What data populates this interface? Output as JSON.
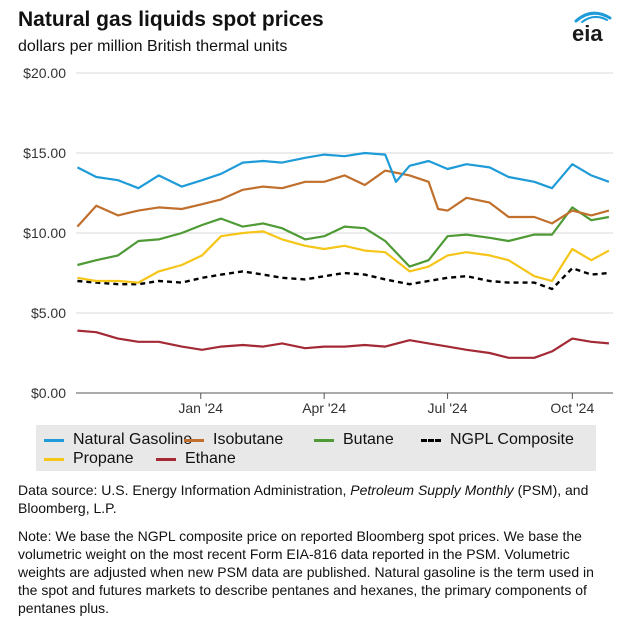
{
  "header": {
    "title": "Natural gas liquids spot prices",
    "subtitle": "dollars per million British thermal units",
    "logo_text": "eia"
  },
  "colors": {
    "natural_gasoline": "#1f9bd8",
    "isobutane": "#c06f2c",
    "butane": "#4e9a35",
    "ngpl_composite": "#000000",
    "propane": "#f5c518",
    "ethane": "#a32a35",
    "grid": "#d9d9d9",
    "legend_bg": "#e8e8e8"
  },
  "chart_data": {
    "type": "line",
    "x_range": [
      "2023-10-01",
      "2024-10-31"
    ],
    "ylim": [
      0,
      20
    ],
    "y_ticks": [
      {
        "value": 0,
        "label": "$0.00"
      },
      {
        "value": 5,
        "label": "$5.00"
      },
      {
        "value": 10,
        "label": "$10.00"
      },
      {
        "value": 15,
        "label": "$15.00"
      },
      {
        "value": 20,
        "label": "$20.00"
      }
    ],
    "x_ticks": [
      {
        "date": "2024-01-01",
        "label": "Jan '24"
      },
      {
        "date": "2024-04-01",
        "label": "Apr '24"
      },
      {
        "date": "2024-07-01",
        "label": "Jul '24"
      },
      {
        "date": "2024-10-01",
        "label": "Oct '24"
      }
    ],
    "grid": "horizontal",
    "legend_position": "bottom",
    "series": [
      {
        "name": "Natural Gasoline",
        "key": "natural_gasoline",
        "points": [
          [
            "2023-10-02",
            14.1
          ],
          [
            "2023-10-16",
            13.5
          ],
          [
            "2023-11-01",
            13.3
          ],
          [
            "2023-11-16",
            12.8
          ],
          [
            "2023-12-01",
            13.6
          ],
          [
            "2023-12-18",
            12.9
          ],
          [
            "2024-01-02",
            13.3
          ],
          [
            "2024-01-16",
            13.7
          ],
          [
            "2024-02-01",
            14.4
          ],
          [
            "2024-02-16",
            14.5
          ],
          [
            "2024-03-01",
            14.4
          ],
          [
            "2024-03-18",
            14.7
          ],
          [
            "2024-04-01",
            14.9
          ],
          [
            "2024-04-16",
            14.8
          ],
          [
            "2024-05-01",
            15.0
          ],
          [
            "2024-05-16",
            14.9
          ],
          [
            "2024-05-24",
            13.2
          ],
          [
            "2024-06-03",
            14.2
          ],
          [
            "2024-06-17",
            14.5
          ],
          [
            "2024-07-01",
            14.0
          ],
          [
            "2024-07-15",
            14.3
          ],
          [
            "2024-08-01",
            14.1
          ],
          [
            "2024-08-15",
            13.5
          ],
          [
            "2024-09-03",
            13.2
          ],
          [
            "2024-09-16",
            12.8
          ],
          [
            "2024-10-01",
            14.3
          ],
          [
            "2024-10-15",
            13.6
          ],
          [
            "2024-10-28",
            13.2
          ]
        ]
      },
      {
        "name": "Isobutane",
        "key": "isobutane",
        "points": [
          [
            "2023-10-02",
            10.4
          ],
          [
            "2023-10-16",
            11.7
          ],
          [
            "2023-11-01",
            11.1
          ],
          [
            "2023-11-16",
            11.4
          ],
          [
            "2023-12-01",
            11.6
          ],
          [
            "2023-12-18",
            11.5
          ],
          [
            "2024-01-02",
            11.8
          ],
          [
            "2024-01-16",
            12.1
          ],
          [
            "2024-02-01",
            12.7
          ],
          [
            "2024-02-16",
            12.9
          ],
          [
            "2024-03-01",
            12.8
          ],
          [
            "2024-03-18",
            13.2
          ],
          [
            "2024-04-01",
            13.2
          ],
          [
            "2024-04-16",
            13.6
          ],
          [
            "2024-05-01",
            13.0
          ],
          [
            "2024-05-16",
            13.9
          ],
          [
            "2024-06-03",
            13.6
          ],
          [
            "2024-06-17",
            13.2
          ],
          [
            "2024-06-24",
            11.5
          ],
          [
            "2024-07-01",
            11.4
          ],
          [
            "2024-07-15",
            12.2
          ],
          [
            "2024-08-01",
            11.9
          ],
          [
            "2024-08-15",
            11.0
          ],
          [
            "2024-09-03",
            11.0
          ],
          [
            "2024-09-16",
            10.6
          ],
          [
            "2024-10-01",
            11.4
          ],
          [
            "2024-10-15",
            11.1
          ],
          [
            "2024-10-28",
            11.4
          ]
        ]
      },
      {
        "name": "Butane",
        "key": "butane",
        "points": [
          [
            "2023-10-02",
            8.0
          ],
          [
            "2023-10-16",
            8.3
          ],
          [
            "2023-11-01",
            8.6
          ],
          [
            "2023-11-16",
            9.5
          ],
          [
            "2023-12-01",
            9.6
          ],
          [
            "2023-12-18",
            10.0
          ],
          [
            "2024-01-02",
            10.5
          ],
          [
            "2024-01-16",
            10.9
          ],
          [
            "2024-02-01",
            10.4
          ],
          [
            "2024-02-16",
            10.6
          ],
          [
            "2024-03-01",
            10.3
          ],
          [
            "2024-03-18",
            9.6
          ],
          [
            "2024-04-01",
            9.8
          ],
          [
            "2024-04-16",
            10.4
          ],
          [
            "2024-05-01",
            10.3
          ],
          [
            "2024-05-16",
            9.5
          ],
          [
            "2024-06-03",
            7.9
          ],
          [
            "2024-06-17",
            8.3
          ],
          [
            "2024-07-01",
            9.8
          ],
          [
            "2024-07-15",
            9.9
          ],
          [
            "2024-08-01",
            9.7
          ],
          [
            "2024-08-15",
            9.5
          ],
          [
            "2024-09-03",
            9.9
          ],
          [
            "2024-09-16",
            9.9
          ],
          [
            "2024-10-01",
            11.6
          ],
          [
            "2024-10-15",
            10.8
          ],
          [
            "2024-10-28",
            11.0
          ]
        ]
      },
      {
        "name": "NGPL Composite",
        "key": "ngpl_composite",
        "points": [
          [
            "2023-10-02",
            7.0
          ],
          [
            "2023-10-16",
            6.9
          ],
          [
            "2023-11-01",
            6.8
          ],
          [
            "2023-11-16",
            6.8
          ],
          [
            "2023-12-01",
            7.0
          ],
          [
            "2023-12-18",
            6.9
          ],
          [
            "2024-01-02",
            7.2
          ],
          [
            "2024-01-16",
            7.4
          ],
          [
            "2024-02-01",
            7.6
          ],
          [
            "2024-02-16",
            7.4
          ],
          [
            "2024-03-01",
            7.2
          ],
          [
            "2024-03-18",
            7.1
          ],
          [
            "2024-04-01",
            7.3
          ],
          [
            "2024-04-16",
            7.5
          ],
          [
            "2024-05-01",
            7.4
          ],
          [
            "2024-05-16",
            7.1
          ],
          [
            "2024-06-03",
            6.8
          ],
          [
            "2024-06-17",
            7.0
          ],
          [
            "2024-07-01",
            7.2
          ],
          [
            "2024-07-15",
            7.3
          ],
          [
            "2024-08-01",
            7.0
          ],
          [
            "2024-08-15",
            6.9
          ],
          [
            "2024-09-03",
            6.9
          ],
          [
            "2024-09-16",
            6.5
          ],
          [
            "2024-10-01",
            7.8
          ],
          [
            "2024-10-15",
            7.4
          ],
          [
            "2024-10-28",
            7.5
          ]
        ]
      },
      {
        "name": "Propane",
        "key": "propane",
        "points": [
          [
            "2023-10-02",
            7.2
          ],
          [
            "2023-10-16",
            7.0
          ],
          [
            "2023-11-01",
            7.0
          ],
          [
            "2023-11-16",
            6.9
          ],
          [
            "2023-12-01",
            7.6
          ],
          [
            "2023-12-18",
            8.0
          ],
          [
            "2024-01-02",
            8.6
          ],
          [
            "2024-01-16",
            9.8
          ],
          [
            "2024-02-01",
            10.0
          ],
          [
            "2024-02-16",
            10.1
          ],
          [
            "2024-03-01",
            9.6
          ],
          [
            "2024-03-18",
            9.2
          ],
          [
            "2024-04-01",
            9.0
          ],
          [
            "2024-04-16",
            9.2
          ],
          [
            "2024-05-01",
            8.9
          ],
          [
            "2024-05-16",
            8.8
          ],
          [
            "2024-06-03",
            7.6
          ],
          [
            "2024-06-17",
            7.9
          ],
          [
            "2024-07-01",
            8.6
          ],
          [
            "2024-07-15",
            8.8
          ],
          [
            "2024-08-01",
            8.6
          ],
          [
            "2024-08-15",
            8.3
          ],
          [
            "2024-09-03",
            7.3
          ],
          [
            "2024-09-16",
            7.0
          ],
          [
            "2024-10-01",
            9.0
          ],
          [
            "2024-10-15",
            8.3
          ],
          [
            "2024-10-28",
            8.9
          ]
        ]
      },
      {
        "name": "Ethane",
        "key": "ethane",
        "points": [
          [
            "2023-10-02",
            3.9
          ],
          [
            "2023-10-16",
            3.8
          ],
          [
            "2023-11-01",
            3.4
          ],
          [
            "2023-11-16",
            3.2
          ],
          [
            "2023-12-01",
            3.2
          ],
          [
            "2023-12-18",
            2.9
          ],
          [
            "2024-01-02",
            2.7
          ],
          [
            "2024-01-16",
            2.9
          ],
          [
            "2024-02-01",
            3.0
          ],
          [
            "2024-02-16",
            2.9
          ],
          [
            "2024-03-01",
            3.1
          ],
          [
            "2024-03-18",
            2.8
          ],
          [
            "2024-04-01",
            2.9
          ],
          [
            "2024-04-16",
            2.9
          ],
          [
            "2024-05-01",
            3.0
          ],
          [
            "2024-05-16",
            2.9
          ],
          [
            "2024-06-03",
            3.3
          ],
          [
            "2024-06-17",
            3.1
          ],
          [
            "2024-07-01",
            2.9
          ],
          [
            "2024-07-15",
            2.7
          ],
          [
            "2024-08-01",
            2.5
          ],
          [
            "2024-08-15",
            2.2
          ],
          [
            "2024-09-03",
            2.2
          ],
          [
            "2024-09-16",
            2.6
          ],
          [
            "2024-10-01",
            3.4
          ],
          [
            "2024-10-15",
            3.2
          ],
          [
            "2024-10-28",
            3.1
          ]
        ]
      }
    ]
  },
  "legend": {
    "items": [
      {
        "label": "Natural Gasoline",
        "key": "natural_gasoline",
        "style": "solid"
      },
      {
        "label": "Isobutane",
        "key": "isobutane",
        "style": "solid"
      },
      {
        "label": "Butane",
        "key": "butane",
        "style": "solid"
      },
      {
        "label": "NGPL Composite",
        "key": "ngpl_composite",
        "style": "dashed"
      },
      {
        "label": "Propane",
        "key": "propane",
        "style": "solid"
      },
      {
        "label": "Ethane",
        "key": "ethane",
        "style": "solid"
      }
    ]
  },
  "footer": {
    "source_prefix": "Data source: U.S. Energy Information Administration, ",
    "source_italic": "Petroleum Supply Monthly",
    "source_suffix": " (PSM), and Bloomberg, L.P.",
    "note": "Note: We base the NGPL composite price on reported Bloomberg spot prices. We base the volumetric weight on the most recent Form EIA-816 data reported in the PSM. Volumetric weights are adjusted when new PSM data are published. Natural gasoline is the term used in the spot and futures markets to describe pentanes and hexanes, the primary components of pentanes plus."
  }
}
